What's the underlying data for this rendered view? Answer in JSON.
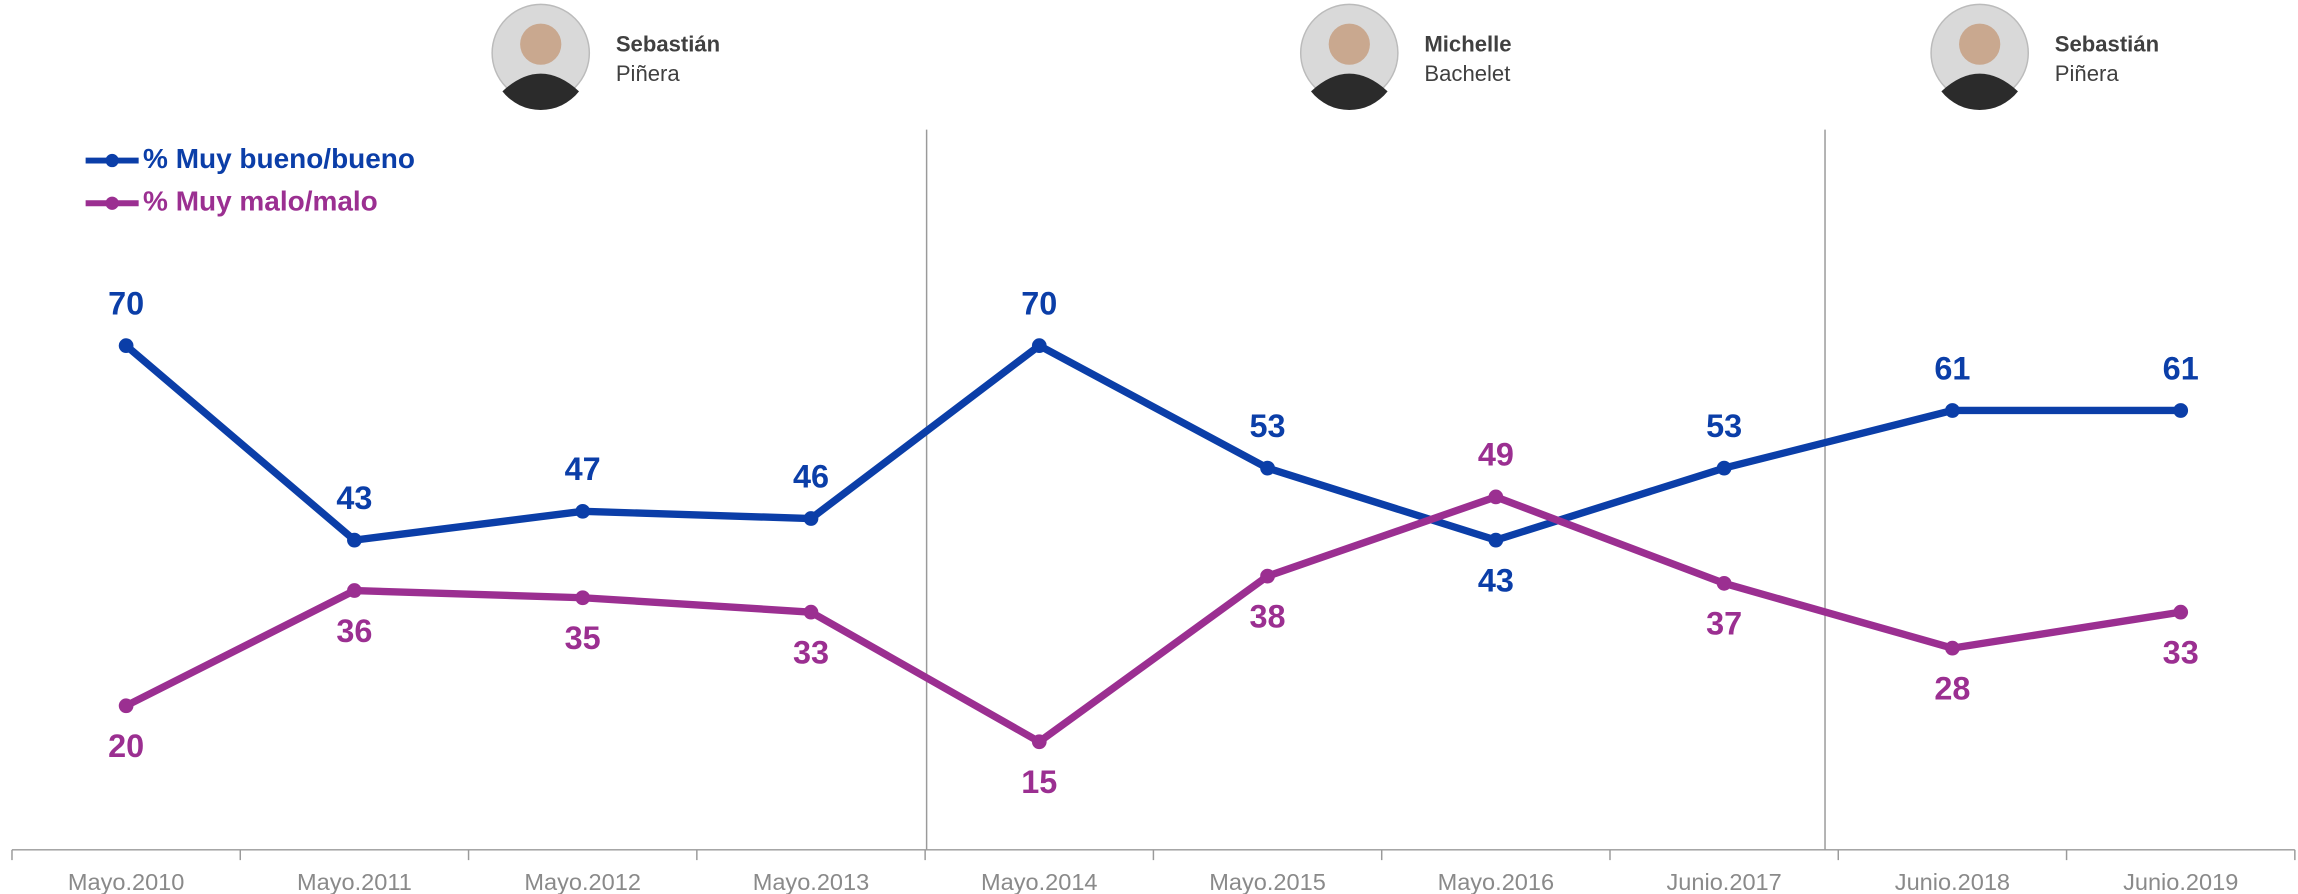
{
  "chart_data": {
    "type": "line",
    "categories": [
      "Mayo.2010",
      "Mayo.2011",
      "Mayo.2012",
      "Mayo.2013",
      "Mayo.2014",
      "Mayo.2015",
      "Mayo.2016",
      "Junio.2017",
      "Junio.2018",
      "Junio.2019"
    ],
    "series": [
      {
        "name": "% Muy bueno/bueno",
        "color": "#0b3ea8",
        "values": [
          70,
          43,
          47,
          46,
          70,
          53,
          43,
          53,
          61,
          61
        ]
      },
      {
        "name": "% Muy malo/malo",
        "color": "#9b2f91",
        "values": [
          20,
          36,
          35,
          33,
          15,
          38,
          49,
          37,
          28,
          33
        ]
      }
    ],
    "ylim": [
      0,
      100
    ],
    "legend": "top-left",
    "annotations": [
      {
        "first": "Sebastián",
        "last": "Piñera"
      },
      {
        "first": "Michelle",
        "last": "Bachelet"
      },
      {
        "first": "Sebastián",
        "last": "Piñera"
      }
    ]
  }
}
